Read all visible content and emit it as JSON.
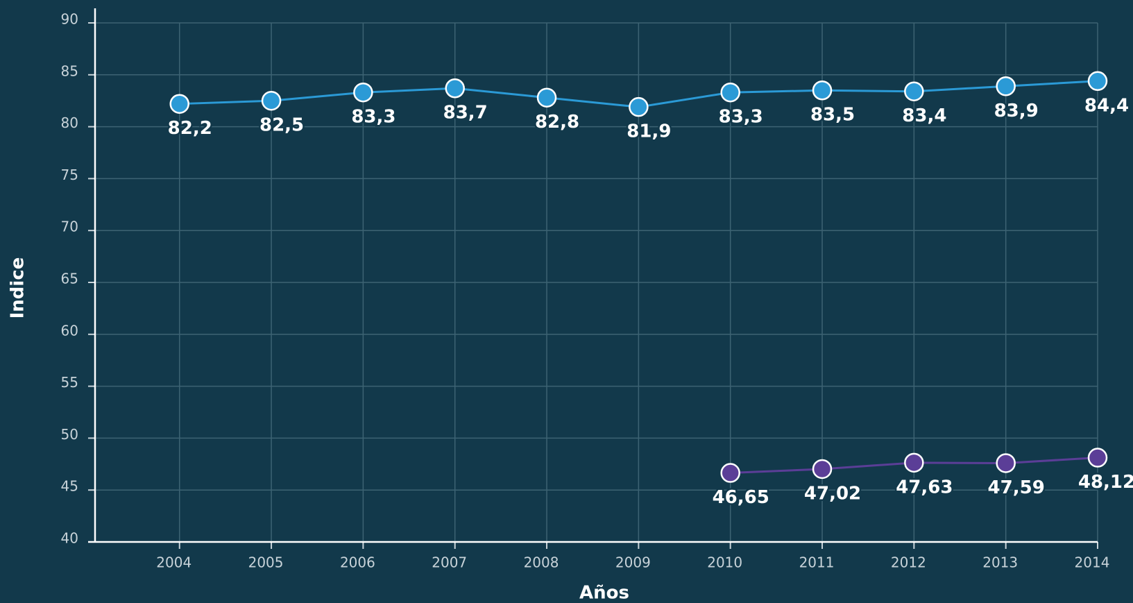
{
  "chart_data": {
    "type": "line",
    "xlabel": "Años",
    "ylabel": "Indice",
    "xlim": [
      2003.08,
      2014
    ],
    "xticks": [
      2004,
      2005,
      2006,
      2007,
      2008,
      2009,
      2010,
      2011,
      2012,
      2013,
      2014
    ],
    "ylim": [
      40,
      90
    ],
    "yticks": [
      40,
      45,
      50,
      55,
      60,
      65,
      70,
      75,
      80,
      85,
      90
    ],
    "grid": true,
    "series": [
      {
        "color": "#2b9ad6",
        "x": [
          2004,
          2005,
          2006,
          2007,
          2008,
          2009,
          2010,
          2011,
          2012,
          2013,
          2014
        ],
        "values": [
          82.2,
          82.5,
          83.3,
          83.7,
          82.8,
          81.9,
          83.3,
          83.5,
          83.4,
          83.9,
          84.4
        ],
        "value_labels": [
          "82,2",
          "82,5",
          "83,3",
          "83,7",
          "82,8",
          "81,9",
          "83,3",
          "83,5",
          "83,4",
          "83,9",
          "84,4"
        ]
      },
      {
        "color": "#5b3e97",
        "x": [
          2010,
          2011,
          2012,
          2013,
          2014
        ],
        "values": [
          46.65,
          47.02,
          47.63,
          47.59,
          48.12
        ],
        "value_labels": [
          "46,65",
          "47,02",
          "47,63",
          "47,59",
          "48,12"
        ]
      }
    ]
  }
}
